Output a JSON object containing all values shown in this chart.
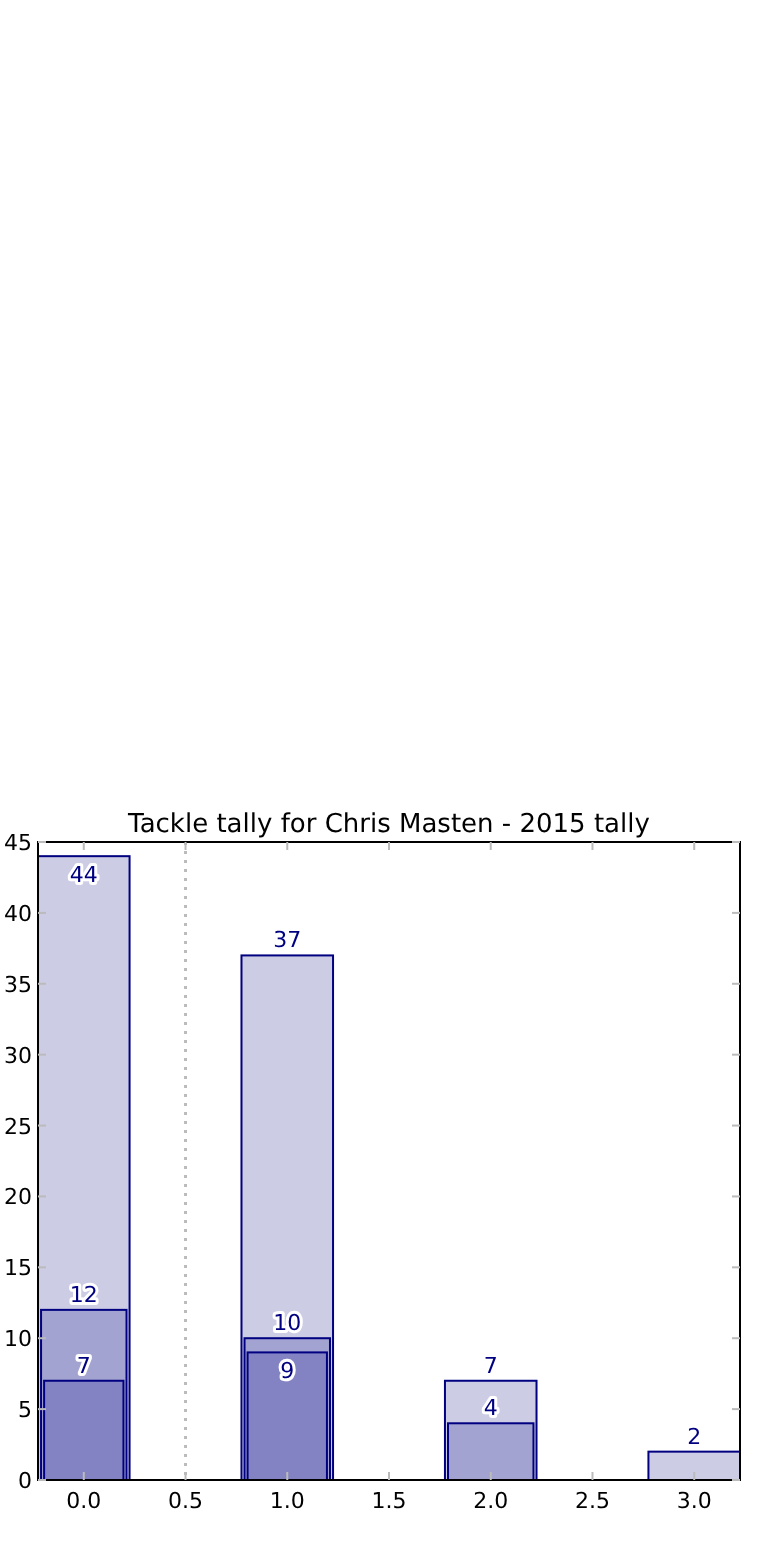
{
  "chart_data": {
    "type": "bar",
    "title": "Tackle tally for Chris Masten - 2015 tally",
    "x": [
      0,
      1,
      2,
      3
    ],
    "series": [
      {
        "color": "#cccce4",
        "values": [
          44,
          37,
          7,
          2
        ]
      },
      {
        "color": "#a3a3d1",
        "values": [
          12,
          10,
          4,
          null
        ]
      },
      {
        "color": "#8383c3",
        "values": [
          7,
          9,
          null,
          null
        ]
      }
    ],
    "xlim": [
      -0.225,
      3.225
    ],
    "xticks": [
      {
        "value": 0,
        "label": "0.0"
      },
      {
        "value": 0.5,
        "label": "0.5"
      },
      {
        "value": 1,
        "label": "1.0"
      },
      {
        "value": 1.5,
        "label": "1.5"
      },
      {
        "value": 2,
        "label": "2.0"
      },
      {
        "value": 2.5,
        "label": "2.5"
      },
      {
        "value": 3,
        "label": "3.0"
      }
    ],
    "ylim": [
      0,
      45
    ],
    "yticks": [
      0,
      5,
      10,
      15,
      20,
      25,
      30,
      35,
      40,
      45
    ],
    "ref_lines": [
      {
        "axis": "x",
        "value": 0.5,
        "color": "#bbbbbb",
        "line_style": "dotted"
      }
    ],
    "data_labels": true,
    "grid": false
  }
}
